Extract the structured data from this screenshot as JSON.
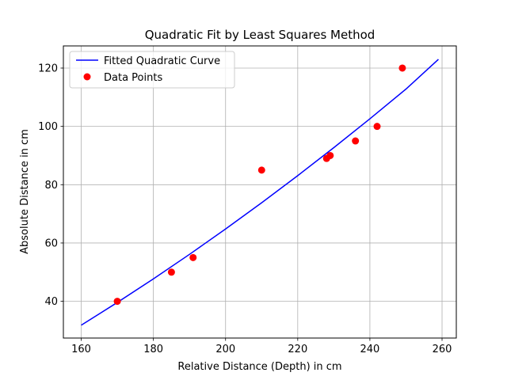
{
  "chart_data": {
    "type": "scatter",
    "title": "Quadratic Fit by Least Squares Method",
    "xlabel": "Relative Distance (Depth) in cm",
    "ylabel": "Absolute Distance in cm",
    "xlim": [
      155.05,
      263.95
    ],
    "ylim": [
      27.4,
      127.6
    ],
    "xticks": [
      160,
      180,
      200,
      220,
      240,
      260
    ],
    "yticks": [
      40,
      60,
      80,
      100,
      120
    ],
    "grid": true,
    "legend_position": "top-left",
    "series": [
      {
        "name": "Fitted Quadratic Curve",
        "kind": "line",
        "color": "#0000ff",
        "x": [
          160,
          170,
          180,
          190,
          200,
          210,
          220,
          230,
          240,
          250,
          259
        ],
        "y": [
          31.8,
          39.6,
          47.7,
          56.1,
          64.8,
          73.8,
          83.1,
          92.7,
          102.6,
          112.8,
          123.0
        ]
      },
      {
        "name": "Data Points",
        "kind": "scatter",
        "color": "#ff0000",
        "x": [
          170,
          185,
          191,
          210,
          228,
          229,
          236,
          242,
          249
        ],
        "y": [
          40,
          50,
          55,
          85,
          89,
          90,
          95,
          100,
          120
        ]
      }
    ]
  }
}
